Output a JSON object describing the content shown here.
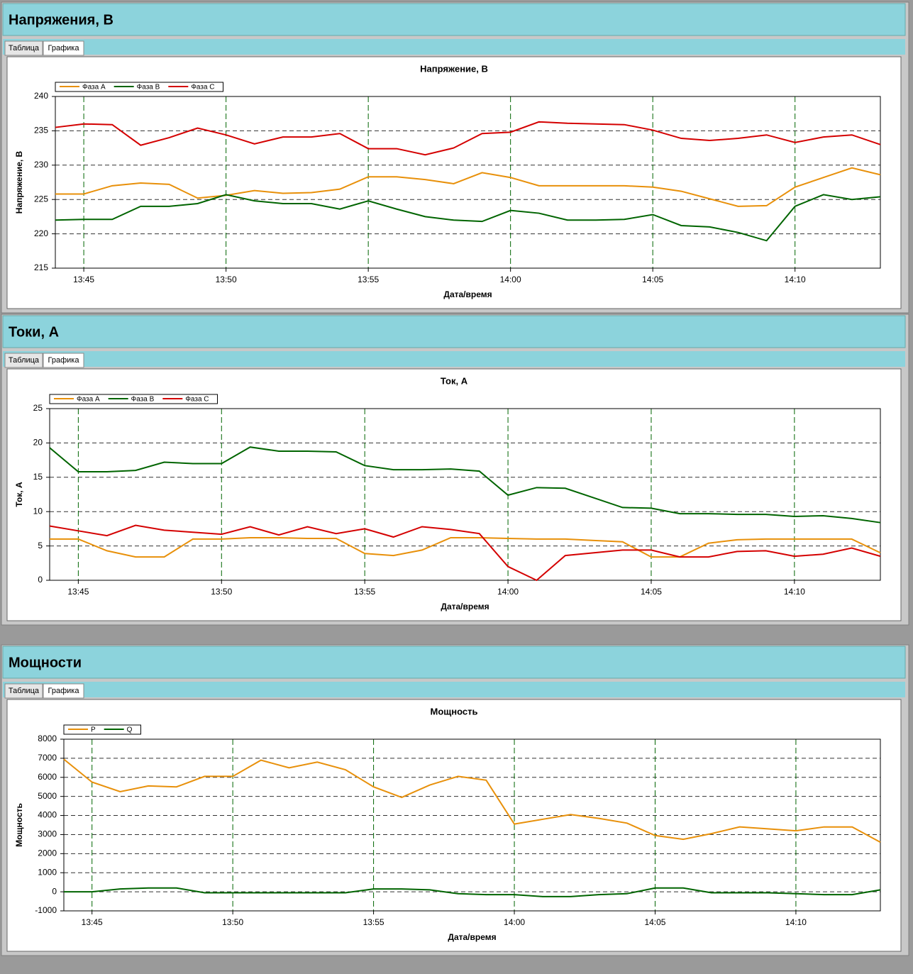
{
  "panels": [
    {
      "title": "Напряжения, В",
      "tabs": [
        "Таблица",
        "Графика"
      ]
    },
    {
      "title": "Токи, А",
      "tabs": [
        "Таблица",
        "Графика"
      ]
    },
    {
      "title": "Мощности",
      "tabs": [
        "Таблица",
        "Графика"
      ]
    }
  ],
  "chart_data": [
    {
      "type": "line",
      "title": "Напряжение, В",
      "xlabel": "Дата/время",
      "ylabel": "Напряжение, В",
      "x": [
        "13:44",
        "13:45",
        "13:46",
        "13:47",
        "13:48",
        "13:49",
        "13:50",
        "13:51",
        "13:52",
        "13:53",
        "13:54",
        "13:55",
        "13:56",
        "13:57",
        "13:58",
        "13:59",
        "14:00",
        "14:01",
        "14:02",
        "14:03",
        "14:04",
        "14:05",
        "14:06",
        "14:07",
        "14:08",
        "14:09",
        "14:10",
        "14:11",
        "14:12",
        "14:13"
      ],
      "xlim": [
        "13:44",
        "14:13"
      ],
      "xticks": [
        "13:45",
        "13:50",
        "13:55",
        "14:00",
        "14:05",
        "14:10"
      ],
      "ylim": [
        215,
        240
      ],
      "yticks": [
        215,
        220,
        225,
        230,
        235,
        240
      ],
      "grid": true,
      "legend": "top-left",
      "series": [
        {
          "name": "Фаза А",
          "color": "#e8900a",
          "values": [
            225.8,
            225.8,
            227,
            227.4,
            227.2,
            225.2,
            225.6,
            226.3,
            225.9,
            226,
            226.5,
            228.3,
            228.3,
            227.9,
            227.3,
            228.9,
            228.2,
            227,
            227,
            227,
            227,
            226.8,
            226.2,
            225.1,
            224,
            224.1,
            226.8,
            228.2,
            229.6,
            228.6
          ]
        },
        {
          "name": "Фаза В",
          "color": "#006400",
          "values": [
            222,
            222.1,
            222.1,
            224,
            224,
            224.4,
            225.7,
            224.8,
            224.4,
            224.4,
            223.6,
            224.8,
            223.6,
            222.5,
            222,
            221.8,
            223.4,
            223,
            222,
            222,
            222.1,
            222.8,
            221.2,
            221,
            220.2,
            219,
            224,
            225.7,
            225,
            225.4
          ]
        },
        {
          "name": "Фаза С",
          "color": "#d40000",
          "values": [
            235.5,
            236,
            235.9,
            232.9,
            234,
            235.4,
            234.4,
            233.1,
            234.1,
            234.1,
            234.6,
            232.4,
            232.4,
            231.5,
            232.5,
            234.6,
            234.8,
            236.3,
            236.1,
            236,
            235.9,
            235.1,
            233.9,
            233.6,
            233.9,
            234.4,
            233.3,
            234.1,
            234.4,
            233
          ]
        }
      ]
    },
    {
      "type": "line",
      "title": "Ток, А",
      "xlabel": "Дата/время",
      "ylabel": "Ток, А",
      "x": [
        "13:44",
        "13:45",
        "13:46",
        "13:47",
        "13:48",
        "13:49",
        "13:50",
        "13:51",
        "13:52",
        "13:53",
        "13:54",
        "13:55",
        "13:56",
        "13:57",
        "13:58",
        "13:59",
        "14:00",
        "14:01",
        "14:02",
        "14:03",
        "14:04",
        "14:05",
        "14:06",
        "14:07",
        "14:08",
        "14:09",
        "14:10",
        "14:11",
        "14:12",
        "14:13"
      ],
      "xlim": [
        "13:44",
        "14:13"
      ],
      "xticks": [
        "13:45",
        "13:50",
        "13:55",
        "14:00",
        "14:05",
        "14:10"
      ],
      "ylim": [
        0,
        25
      ],
      "yticks": [
        0,
        5,
        10,
        15,
        20,
        25
      ],
      "grid": true,
      "legend": "top-left",
      "series": [
        {
          "name": "Фаза А",
          "color": "#e8900a",
          "values": [
            6,
            6,
            4.3,
            3.4,
            3.4,
            6,
            6,
            6.2,
            6.2,
            6.1,
            6.1,
            3.9,
            3.6,
            4.4,
            6.2,
            6.2,
            6.1,
            6,
            6,
            5.8,
            5.6,
            3.4,
            3.4,
            5.4,
            5.9,
            6,
            6,
            6,
            6,
            4
          ]
        },
        {
          "name": "Фаза В",
          "color": "#006400",
          "values": [
            19.3,
            15.8,
            15.8,
            16,
            17.2,
            17,
            17,
            19.4,
            18.8,
            18.8,
            18.7,
            16.7,
            16.1,
            16.1,
            16.2,
            15.9,
            12.4,
            13.5,
            13.4,
            12,
            10.6,
            10.5,
            9.7,
            9.7,
            9.6,
            9.6,
            9.3,
            9.4,
            9,
            8.4
          ]
        },
        {
          "name": "Фаза С",
          "color": "#d40000",
          "values": [
            7.9,
            7.2,
            6.5,
            8,
            7.3,
            7,
            6.7,
            7.8,
            6.6,
            7.8,
            6.8,
            7.5,
            6.3,
            7.8,
            7.4,
            6.8,
            2,
            0,
            3.6,
            4,
            4.4,
            4.4,
            3.4,
            3.4,
            4.2,
            4.3,
            3.5,
            3.8,
            4.7,
            3.5
          ]
        }
      ]
    },
    {
      "type": "line",
      "title": "Мощность",
      "xlabel": "Дата/время",
      "ylabel": "Мощность",
      "x": [
        "13:44",
        "13:45",
        "13:46",
        "13:47",
        "13:48",
        "13:49",
        "13:50",
        "13:51",
        "13:52",
        "13:53",
        "13:54",
        "13:55",
        "13:56",
        "13:57",
        "13:58",
        "13:59",
        "14:00",
        "14:01",
        "14:02",
        "14:03",
        "14:04",
        "14:05",
        "14:06",
        "14:07",
        "14:08",
        "14:09",
        "14:10",
        "14:11",
        "14:12",
        "14:13"
      ],
      "xlim": [
        "13:44",
        "14:13"
      ],
      "xticks": [
        "13:45",
        "13:50",
        "13:55",
        "14:00",
        "14:05",
        "14:10"
      ],
      "ylim": [
        -1000,
        8000
      ],
      "yticks": [
        -1000,
        0,
        1000,
        2000,
        3000,
        4000,
        5000,
        6000,
        7000,
        8000
      ],
      "grid": true,
      "legend": "top-left",
      "series": [
        {
          "name": "P",
          "color": "#e8900a",
          "values": [
            6950,
            5750,
            5250,
            5550,
            5500,
            6050,
            6050,
            6900,
            6500,
            6800,
            6400,
            5500,
            4950,
            5600,
            6050,
            5850,
            3550,
            3800,
            4050,
            3850,
            3600,
            2950,
            2750,
            3050,
            3400,
            3300,
            3200,
            3400,
            3400,
            2600
          ]
        },
        {
          "name": "Q",
          "color": "#006400",
          "values": [
            0,
            0,
            150,
            200,
            200,
            -50,
            -50,
            -50,
            -50,
            -50,
            -50,
            150,
            150,
            100,
            -100,
            -150,
            -150,
            -250,
            -250,
            -150,
            -100,
            200,
            200,
            -50,
            -50,
            -50,
            -100,
            -150,
            -150,
            100
          ]
        }
      ]
    }
  ]
}
